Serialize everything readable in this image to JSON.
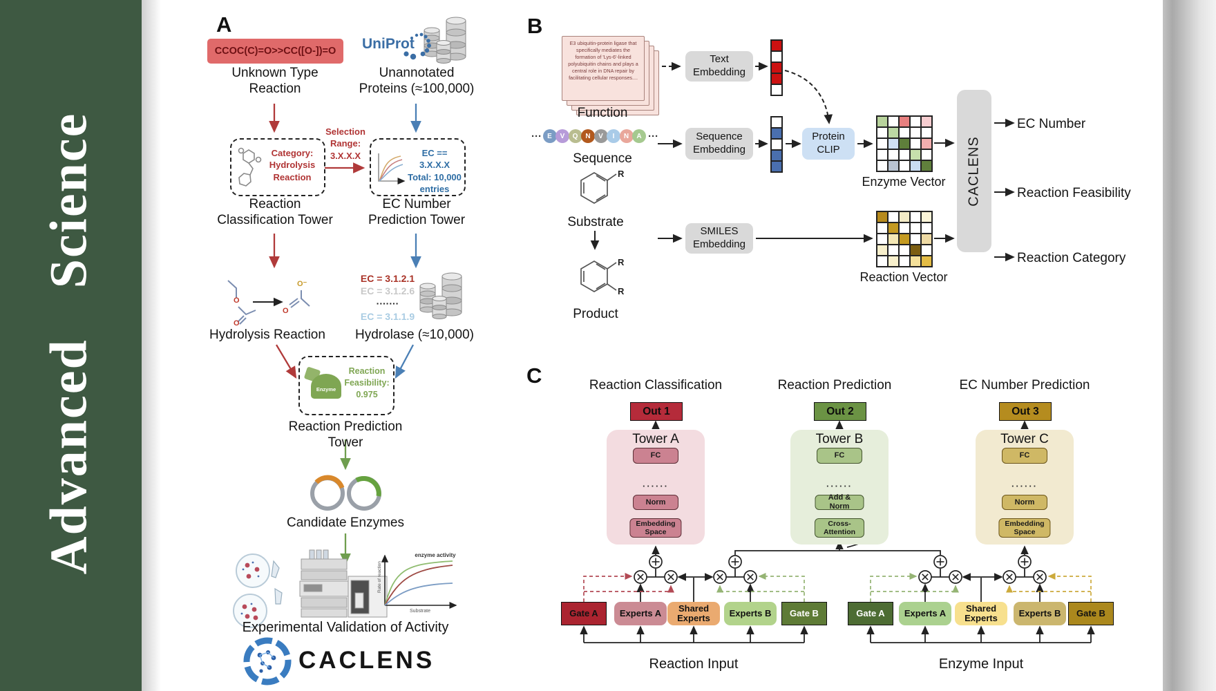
{
  "journal": {
    "name": "Advanced Science"
  },
  "colors": {
    "sidebar_green": "#3e5942",
    "smiles_bg": "#e06a6a",
    "uniprot_blue": "#3b6ea5",
    "accent_red": "#b03a3a",
    "accent_blue": "#4a7fb5",
    "accent_green": "#6f9e4f",
    "enzyme_green": "#7fa653",
    "gray_box": "#d9d9d9",
    "clip_blue": "#cde0f4",
    "fn_card_bg": "#f8e2dd",
    "fn_card_text": "#7a3b3b",
    "out1": "#b52b3a",
    "out2": "#6b9344",
    "out3": "#b58c1f",
    "towerA_bg": "#f3dce0",
    "towerA_box": "#cb8291",
    "towerB_bg": "#e6eedb",
    "towerB_box": "#a9c488",
    "towerC_bg": "#f2ead0",
    "towerC_box": "#cfb865",
    "gateA_left": "#ab2430",
    "expertsA_left": "#cb8b94",
    "shared_left": "#eaaa70",
    "expertsB_left": "#b2d38b",
    "gateB_left": "#5e7b36",
    "gateA_right": "#4d6c33",
    "expertsA_right": "#abd18f",
    "shared_right": "#f7e08e",
    "expertsB_right": "#cbb66e",
    "gateB_right": "#ab881d"
  },
  "panelA": {
    "label": "A",
    "smiles": "CCOC(C)=O>>CC([O-])=O",
    "unknownReaction": "Unknown Type\nReaction",
    "uniprot": "UniProt",
    "unannotated": "Unannotated\nProteins (≈100,000)",
    "selection": "Selection\nRange:\n3.X.X.X",
    "box1": "Category:\nHydrolysis\nReaction",
    "box2": "EC == 3.X.X.X\nTotal: 10,000\nentries",
    "tower1": "Reaction\nClassification Tower",
    "tower2": "EC Number\nPrediction Tower",
    "hydrolysisReaction": "Hydrolysis Reaction",
    "ecList": [
      "EC = 3.1.2.1",
      "EC = 3.1.2.6",
      "·······",
      "EC = 3.1.1.9"
    ],
    "hydrolase": "Hydrolase (≈10,000)",
    "enzymeBadge": "Enzyme",
    "feasibility": "Reaction\nFeasibility:\n0.975",
    "predictionTower": "Reaction Prediction Tower",
    "candidateEnzymes": "Candidate Enzymes",
    "graph": {
      "note": "enzyme activity",
      "ylabel": "Rate of reaction",
      "xlabel": "Substrate"
    },
    "validation": "Experimental Validation of Activity",
    "logoText": "CACLENS",
    "atoms": {
      "o": "O",
      "oMinus": "O⁻"
    }
  },
  "panelB": {
    "label": "B",
    "functionCard": "E3 ubiquitin-protein ligase that specifically mediates the formation of 'Lys-6'-linked polyubiquitin chains and plays a central role in DNA repair by facilitating cellular responses....",
    "functionLabel": "Function",
    "dots": "···",
    "sequence": [
      {
        "l": "E",
        "c": "#7b9cc4"
      },
      {
        "l": "V",
        "c": "#b79bd9"
      },
      {
        "l": "Q",
        "c": "#b9bd90"
      },
      {
        "l": "N",
        "c": "#b2591d"
      },
      {
        "l": "V",
        "c": "#9a9a9a"
      },
      {
        "l": "I",
        "c": "#a9cbe8"
      },
      {
        "l": "N",
        "c": "#e9a79b"
      },
      {
        "l": "A",
        "c": "#a5c98f"
      }
    ],
    "sequenceLabel": "Sequence",
    "substrateLabel": "Substrate",
    "productLabel": "Product",
    "r": "R",
    "textEmbedding": "Text\nEmbedding",
    "sequenceEmbedding": "Sequence\nEmbedding",
    "smilesEmbedding": "SMILES\nEmbedding",
    "proteinClip": "Protein\nCLIP",
    "textVector": [
      [
        "#cc1111"
      ],
      [
        "#ffffff"
      ],
      [
        "#cc1111"
      ],
      [
        "#cc1111"
      ],
      [
        "#ffffff"
      ]
    ],
    "seqVector": [
      [
        "#ffffff"
      ],
      [
        "#4a6fae"
      ],
      [
        "#ffffff"
      ],
      [
        "#4a6fae"
      ],
      [
        "#4a6fae"
      ]
    ],
    "enzymeVector": [
      [
        "#b8d39c",
        "#ffffff",
        "#e88080",
        "#ffffff",
        "#f6cdd0"
      ],
      [
        "#ffffff",
        "#bcd8a4",
        "#ffffff",
        "#ffffff",
        "#ffffff"
      ],
      [
        "#ffffff",
        "#cfdff2",
        "#5f7f3b",
        "#ffffff",
        "#f2aeae"
      ],
      [
        "#ffffff",
        "#ffffff",
        "#ffffff",
        "#c6e0ac",
        "#ffffff"
      ],
      [
        "#ffffff",
        "#b9c4d2",
        "#ffffff",
        "#c9dcf2",
        "#60803c"
      ]
    ],
    "enzymeVectorLabel": "Enzyme Vector",
    "reactionVector": [
      [
        "#b78a1c",
        "#ffffff",
        "#f3ebc6",
        "#ffffff",
        "#faf4d8"
      ],
      [
        "#ffffff",
        "#c49a21",
        "#ffffff",
        "#ffffff",
        "#ffffff"
      ],
      [
        "#ffffff",
        "#f3e7b4",
        "#c49a21",
        "#ffffff",
        "#eedaa4"
      ],
      [
        "#f8f0cc",
        "#ffffff",
        "#ffffff",
        "#7c5e12",
        "#ffffff"
      ],
      [
        "#ffffff",
        "#f8f0cc",
        "#ffffff",
        "#f4e09a",
        "#e3bc45"
      ]
    ],
    "reactionVectorLabel": "Reaction Vector",
    "caclens": "CACLENS",
    "outputs": [
      "EC Number",
      "Reaction Feasibility",
      "Reaction Category"
    ]
  },
  "panelC": {
    "label": "C",
    "columns": [
      "Reaction Classification",
      "Reaction Prediction",
      "EC Number Prediction"
    ],
    "outs": [
      "Out 1",
      "Out 2",
      "Out 3"
    ],
    "towers": [
      {
        "title": "Tower A",
        "fc": "FC",
        "dots": "······",
        "mid": "Norm",
        "bottom": "Embedding\nSpace"
      },
      {
        "title": "Tower B",
        "fc": "FC",
        "dots": "······",
        "mid": "Add & Norm",
        "bottom": "Cross-\nAttention"
      },
      {
        "title": "Tower C",
        "fc": "FC",
        "dots": "······",
        "mid": "Norm",
        "bottom": "Embedding\nSpace"
      }
    ],
    "moe": {
      "left": {
        "gateA": "Gate A",
        "expertsA": "Experts A",
        "shared": "Shared\nExperts",
        "expertsB": "Experts B",
        "gateB": "Gate B",
        "input": "Reaction Input"
      },
      "right": {
        "gateA": "Gate A",
        "expertsA": "Experts A",
        "shared": "Shared\nExperts",
        "expertsB": "Experts B",
        "gateB": "Gate B",
        "input": "Enzyme Input"
      }
    }
  }
}
